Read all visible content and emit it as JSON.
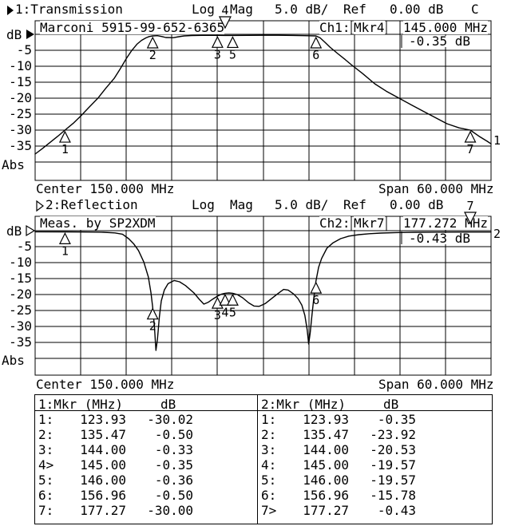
{
  "header1": {
    "channel": "1:Transmission",
    "format_log": "Log",
    "format_mag": "Mag",
    "scale": "5.0 dB/",
    "ref_label": "Ref",
    "ref_value": "0.00 dB",
    "cal_indicator": "C"
  },
  "chart1": {
    "id_text": "Marconi 5915-99-652-6365",
    "mkr_channel": "Ch1:",
    "mkr_name": "Mkr4",
    "mkr_freq": "145.000 MHz",
    "mkr_value": "-0.35 dB",
    "axis_unit": "dB",
    "abs_label": "Abs",
    "yticks": [
      "-5",
      "-10",
      "-15",
      "-20",
      "-25",
      "-30",
      "-35"
    ],
    "center": "Center 150.000 MHz",
    "span": "Span 60.000 MHz",
    "trace_label": "1"
  },
  "header2": {
    "channel": "2:Reflection",
    "format_log": "Log",
    "format_mag": "Mag",
    "scale": "5.0 dB/",
    "ref_label": "Ref",
    "ref_value": "0.00 dB"
  },
  "chart2": {
    "id_text": "Meas. by SP2XDM",
    "mkr_channel": "Ch2:",
    "mkr_name": "Mkr7",
    "mkr_freq": "177.272 MHz",
    "mkr_value": "-0.43 dB",
    "axis_unit": "dB",
    "abs_label": "Abs",
    "yticks": [
      "-5",
      "-10",
      "-15",
      "-20",
      "-25",
      "-30",
      "-35"
    ],
    "center": "Center 150.000 MHz",
    "span": "Span 60.000 MHz",
    "trace_label": "2"
  },
  "chart_data": [
    {
      "type": "line",
      "title": "Transmission",
      "channel": 1,
      "format": "Log Mag",
      "scale_db_per_div": 5,
      "ref_db": 0,
      "center_mhz": 150,
      "span_mhz": 60,
      "x_range": [
        120,
        180
      ],
      "x_unit": "MHz",
      "y_unit": "dB",
      "y_range": [
        -40,
        0
      ],
      "grid": true,
      "pointer": "filled",
      "trace": [
        [
          120,
          -37.5
        ],
        [
          121,
          -35.7
        ],
        [
          122,
          -33.8
        ],
        [
          123,
          -31.9
        ],
        [
          123.93,
          -30.0
        ],
        [
          125,
          -27.9
        ],
        [
          126,
          -25.6
        ],
        [
          127,
          -23.1
        ],
        [
          128.3,
          -19.9
        ],
        [
          129.3,
          -16.9
        ],
        [
          130.4,
          -13.8
        ],
        [
          131.2,
          -10.8
        ],
        [
          132,
          -7.6
        ],
        [
          132.7,
          -5.1
        ],
        [
          133.4,
          -3.1
        ],
        [
          134,
          -1.9
        ],
        [
          134.6,
          -1.1
        ],
        [
          135,
          -0.7
        ],
        [
          135.47,
          -0.5
        ],
        [
          136.1,
          -0.42
        ],
        [
          136.7,
          -0.7
        ],
        [
          137.2,
          -1.0
        ],
        [
          138.2,
          -1.05
        ],
        [
          138.9,
          -0.75
        ],
        [
          139.6,
          -0.5
        ],
        [
          140.6,
          -0.37
        ],
        [
          142,
          -0.32
        ],
        [
          144,
          -0.33
        ],
        [
          145,
          -0.35
        ],
        [
          146,
          -0.36
        ],
        [
          148,
          -0.32
        ],
        [
          150,
          -0.3
        ],
        [
          152,
          -0.31
        ],
        [
          154,
          -0.36
        ],
        [
          155.5,
          -0.43
        ],
        [
          156.96,
          -0.5
        ],
        [
          157.5,
          -1.1
        ],
        [
          158.1,
          -2.4
        ],
        [
          158.8,
          -4.0
        ],
        [
          159.8,
          -6.0
        ],
        [
          160.8,
          -7.9
        ],
        [
          161.6,
          -9.5
        ],
        [
          163.1,
          -12.3
        ],
        [
          164.7,
          -15.5
        ],
        [
          166.2,
          -17.8
        ],
        [
          167.9,
          -20.0
        ],
        [
          169.5,
          -22.1
        ],
        [
          171,
          -24.0
        ],
        [
          172.6,
          -26.0
        ],
        [
          174.2,
          -28.0
        ],
        [
          175.8,
          -29.3
        ],
        [
          177.27,
          -30.0
        ],
        [
          178.4,
          -31.9
        ],
        [
          179.5,
          -33.5
        ],
        [
          180,
          -34.3
        ]
      ],
      "markers": [
        {
          "n": 1,
          "f": 123.93,
          "db": -30.02,
          "dir": "up"
        },
        {
          "n": 2,
          "f": 135.47,
          "db": -0.5,
          "dir": "up"
        },
        {
          "n": 3,
          "f": 144.0,
          "db": -0.33,
          "dir": "up"
        },
        {
          "n": 4,
          "f": 145.0,
          "db": -0.35,
          "dir": "down"
        },
        {
          "n": 5,
          "f": 146.0,
          "db": -0.36,
          "dir": "up"
        },
        {
          "n": 6,
          "f": 156.96,
          "db": -0.5,
          "dir": "up"
        },
        {
          "n": 7,
          "f": 177.27,
          "db": -30.0,
          "dir": "up"
        }
      ]
    },
    {
      "type": "line",
      "title": "Reflection",
      "channel": 2,
      "format": "Log Mag",
      "scale_db_per_div": 5,
      "ref_db": 0,
      "center_mhz": 150,
      "span_mhz": 60,
      "x_range": [
        120,
        180
      ],
      "x_unit": "MHz",
      "y_unit": "dB",
      "y_range": [
        -40,
        0
      ],
      "grid": true,
      "pointer": "hollow",
      "trace": [
        [
          120,
          -0.35
        ],
        [
          124,
          -0.38
        ],
        [
          127,
          -0.43
        ],
        [
          129,
          -0.5
        ],
        [
          130.5,
          -0.7
        ],
        [
          131.5,
          -1.1
        ],
        [
          132.3,
          -2.5
        ],
        [
          133,
          -4.2
        ],
        [
          133.6,
          -6.2
        ],
        [
          134.3,
          -9.8
        ],
        [
          134.9,
          -14.5
        ],
        [
          135.25,
          -19.5
        ],
        [
          135.47,
          -23.9
        ],
        [
          135.7,
          -30
        ],
        [
          135.9,
          -37.5
        ],
        [
          136.1,
          -34
        ],
        [
          136.35,
          -27
        ],
        [
          136.6,
          -22
        ],
        [
          137,
          -18.6
        ],
        [
          137.5,
          -16.6
        ],
        [
          138.3,
          -15.6
        ],
        [
          139,
          -16
        ],
        [
          139.8,
          -17.2
        ],
        [
          140.9,
          -19.5
        ],
        [
          141.6,
          -21.5
        ],
        [
          142.2,
          -23
        ],
        [
          142.8,
          -22.4
        ],
        [
          143.4,
          -21.4
        ],
        [
          144,
          -20.5
        ],
        [
          144.5,
          -19.9
        ],
        [
          145,
          -19.6
        ],
        [
          145.5,
          -19.5
        ],
        [
          146,
          -19.6
        ],
        [
          146.6,
          -20
        ],
        [
          147.3,
          -21
        ],
        [
          148.1,
          -22.6
        ],
        [
          148.8,
          -23.6
        ],
        [
          149.5,
          -23.7
        ],
        [
          150.3,
          -22.8
        ],
        [
          151.1,
          -21.3
        ],
        [
          151.9,
          -19.8
        ],
        [
          152.7,
          -18.4
        ],
        [
          153.3,
          -18.6
        ],
        [
          154,
          -19.8
        ],
        [
          154.6,
          -21.3
        ],
        [
          155.1,
          -23.3
        ],
        [
          155.5,
          -26.5
        ],
        [
          155.8,
          -31
        ],
        [
          156,
          -35.5
        ],
        [
          156.2,
          -32
        ],
        [
          156.45,
          -26
        ],
        [
          156.7,
          -20.5
        ],
        [
          156.96,
          -15.8
        ],
        [
          157.3,
          -11.5
        ],
        [
          157.7,
          -8.7
        ],
        [
          158.4,
          -5.5
        ],
        [
          159.2,
          -3.8
        ],
        [
          160.2,
          -2.5
        ],
        [
          161.3,
          -1.7
        ],
        [
          162.6,
          -1.25
        ],
        [
          164,
          -0.95
        ],
        [
          165.5,
          -0.75
        ],
        [
          167.5,
          -0.6
        ],
        [
          170,
          -0.5
        ],
        [
          173,
          -0.45
        ],
        [
          177.27,
          -0.43
        ],
        [
          180,
          -0.42
        ]
      ],
      "markers": [
        {
          "n": 1,
          "f": 123.93,
          "db": -0.35,
          "dir": "up"
        },
        {
          "n": 2,
          "f": 135.47,
          "db": -23.92,
          "dir": "up"
        },
        {
          "n": 3,
          "f": 144.0,
          "db": -20.53,
          "dir": "up"
        },
        {
          "n": 4,
          "f": 145.0,
          "db": -19.57,
          "dir": "up"
        },
        {
          "n": 5,
          "f": 146.0,
          "db": -19.57,
          "dir": "up"
        },
        {
          "n": 6,
          "f": 156.96,
          "db": -15.78,
          "dir": "up"
        },
        {
          "n": 7,
          "f": 177.27,
          "db": -0.43,
          "dir": "down"
        }
      ]
    }
  ],
  "tables": {
    "t1": {
      "title": "1:Mkr (MHz)",
      "col_db": "dB",
      "rows": [
        [
          "1:",
          "123.93",
          "-30.02"
        ],
        [
          "2:",
          "135.47",
          "-0.50"
        ],
        [
          "3:",
          "144.00",
          "-0.33"
        ],
        [
          "4>",
          "145.00",
          "-0.35"
        ],
        [
          "5:",
          "146.00",
          "-0.36"
        ],
        [
          "6:",
          "156.96",
          "-0.50"
        ],
        [
          "7:",
          "177.27",
          "-30.00"
        ]
      ]
    },
    "t2": {
      "title": "2:Mkr (MHz)",
      "col_db": "dB",
      "rows": [
        [
          "1:",
          "123.93",
          "-0.35"
        ],
        [
          "2:",
          "135.47",
          "-23.92"
        ],
        [
          "3:",
          "144.00",
          "-20.53"
        ],
        [
          "4:",
          "145.00",
          "-19.57"
        ],
        [
          "5:",
          "146.00",
          "-19.57"
        ],
        [
          "6:",
          "156.96",
          "-15.78"
        ],
        [
          "7>",
          "177.27",
          "-0.43"
        ]
      ]
    }
  }
}
